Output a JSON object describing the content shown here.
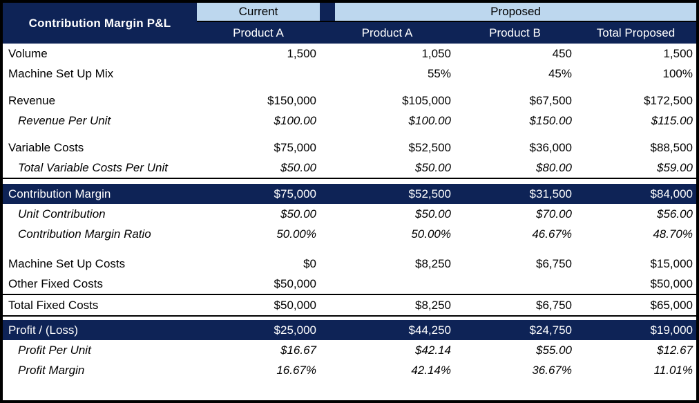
{
  "chart_data": {
    "type": "table",
    "title": "Contribution Margin P&L",
    "column_groups": [
      {
        "label": "Current",
        "cols": 1
      },
      {
        "label": "Proposed",
        "cols": 3
      }
    ],
    "columns": [
      "Product A",
      "Product A",
      "Product B",
      "Total Proposed"
    ],
    "rows": [
      {
        "label": "Volume",
        "values": [
          "1,500",
          "1,050",
          "450",
          "1,500"
        ],
        "style": "normal"
      },
      {
        "label": "Machine Set Up Mix",
        "values": [
          "",
          "55%",
          "45%",
          "100%"
        ],
        "style": "normal"
      },
      {
        "style": "spacer",
        "h": 10
      },
      {
        "label": "Revenue",
        "values": [
          "$150,000",
          "$105,000",
          "$67,500",
          "$172,500"
        ],
        "style": "normal"
      },
      {
        "label": "Revenue Per Unit",
        "values": [
          "$100.00",
          "$100.00",
          "$150.00",
          "$115.00"
        ],
        "style": "italic"
      },
      {
        "style": "spacer",
        "h": 10
      },
      {
        "label": "Variable Costs",
        "values": [
          "$75,000",
          "$52,500",
          "$36,000",
          "$88,500"
        ],
        "style": "normal"
      },
      {
        "label": "Total Variable Costs Per Unit",
        "values": [
          "$50.00",
          "$50.00",
          "$80.00",
          "$59.00"
        ],
        "style": "italic"
      },
      {
        "style": "rule"
      },
      {
        "style": "spacer",
        "h": 7
      },
      {
        "label": "Contribution Margin",
        "values": [
          "$75,000",
          "$52,500",
          "$31,500",
          "$84,000"
        ],
        "style": "band"
      },
      {
        "label": "Unit Contribution",
        "values": [
          "$50.00",
          "$50.00",
          "$70.00",
          "$56.00"
        ],
        "style": "italic"
      },
      {
        "label": "Contribution Margin Ratio",
        "values": [
          "50.00%",
          "50.00%",
          "46.67%",
          "48.70%"
        ],
        "style": "italic"
      },
      {
        "style": "spacer",
        "h": 14
      },
      {
        "label": "Machine Set Up Costs",
        "values": [
          "$0",
          "$8,250",
          "$6,750",
          "$15,000"
        ],
        "style": "normal"
      },
      {
        "label": "Other Fixed Costs",
        "values": [
          "$50,000",
          "",
          "",
          "$50,000"
        ],
        "style": "normal"
      },
      {
        "style": "rule"
      },
      {
        "label": "Total Fixed Costs",
        "values": [
          "$50,000",
          "$8,250",
          "$6,750",
          "$65,000"
        ],
        "style": "normal"
      },
      {
        "style": "rule"
      },
      {
        "style": "spacer",
        "h": 5
      },
      {
        "label": "Profit / (Loss)",
        "values": [
          "$25,000",
          "$44,250",
          "$24,750",
          "$19,000"
        ],
        "style": "band"
      },
      {
        "label": "Profit Per Unit",
        "values": [
          "$16.67",
          "$42.14",
          "$55.00",
          "$12.67"
        ],
        "style": "italic"
      },
      {
        "label": "Profit Margin",
        "values": [
          "16.67%",
          "42.14%",
          "36.67%",
          "11.01%"
        ],
        "style": "italic"
      }
    ]
  },
  "colors": {
    "navy": "#0E2356",
    "light_blue": "#BDD7EE",
    "border_black": "#000000",
    "text_on_navy": "#FFFFFF",
    "text_on_white": "#000000"
  }
}
